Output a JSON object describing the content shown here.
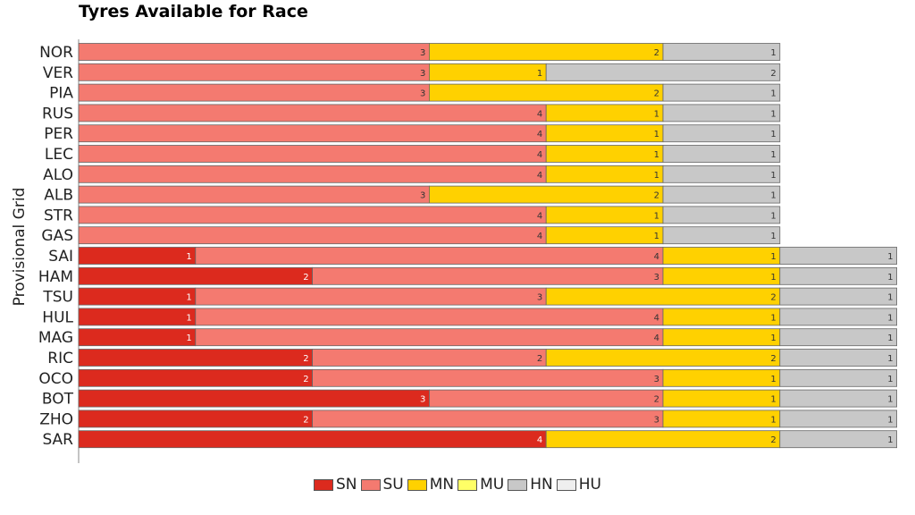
{
  "chart_data": {
    "type": "bar",
    "orientation": "horizontal",
    "stacked": true,
    "title": "Tyres Available for Race",
    "ylabel": "Provisional Grid",
    "xlabel": "",
    "grid": false,
    "legend_position": "bottom-center",
    "categories": [
      "NOR",
      "VER",
      "PIA",
      "RUS",
      "PER",
      "LEC",
      "ALO",
      "ALB",
      "STR",
      "GAS",
      "SAI",
      "HAM",
      "TSU",
      "HUL",
      "MAG",
      "RIC",
      "OCO",
      "BOT",
      "ZHO",
      "SAR"
    ],
    "series": [
      {
        "name": "SN",
        "color": "#dc2a1e",
        "values": [
          0,
          0,
          0,
          0,
          0,
          0,
          0,
          0,
          0,
          0,
          1,
          2,
          1,
          1,
          1,
          2,
          2,
          3,
          2,
          4
        ]
      },
      {
        "name": "SU",
        "color": "#f47a70",
        "values": [
          3,
          3,
          3,
          4,
          4,
          4,
          4,
          3,
          4,
          4,
          4,
          3,
          3,
          4,
          4,
          2,
          3,
          2,
          3,
          0
        ]
      },
      {
        "name": "MN",
        "color": "#ffd100",
        "values": [
          2,
          1,
          2,
          1,
          1,
          1,
          1,
          2,
          1,
          1,
          1,
          1,
          2,
          1,
          1,
          2,
          1,
          1,
          1,
          2
        ]
      },
      {
        "name": "MU",
        "color": "#ffff66",
        "values": [
          0,
          0,
          0,
          0,
          0,
          0,
          0,
          0,
          0,
          0,
          0,
          0,
          0,
          0,
          0,
          0,
          0,
          0,
          0,
          0
        ]
      },
      {
        "name": "HN",
        "color": "#c8c8c8",
        "values": [
          1,
          2,
          1,
          1,
          1,
          1,
          1,
          1,
          1,
          1,
          1,
          1,
          1,
          1,
          1,
          1,
          1,
          1,
          1,
          1
        ]
      },
      {
        "name": "HU",
        "color": "#efefef",
        "values": [
          0,
          0,
          0,
          0,
          0,
          0,
          0,
          0,
          0,
          0,
          0,
          0,
          0,
          0,
          0,
          0,
          0,
          0,
          0,
          0
        ]
      }
    ]
  }
}
